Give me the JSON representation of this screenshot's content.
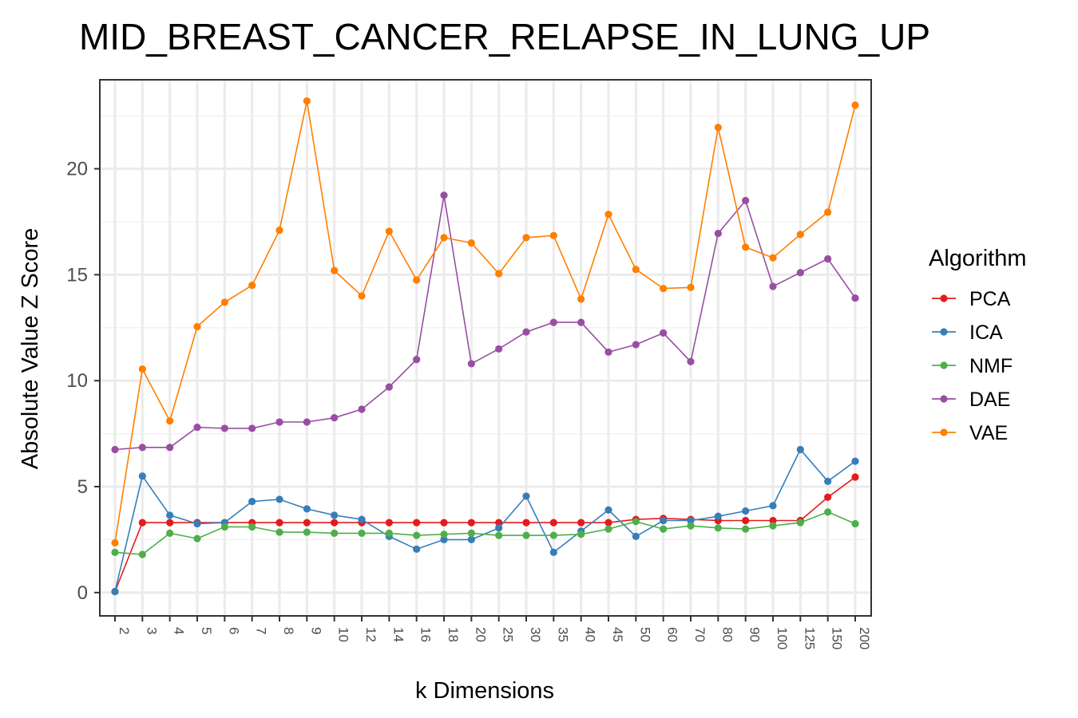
{
  "chart_data": {
    "type": "line",
    "title": "MID_BREAST_CANCER_RELAPSE_IN_LUNG_UP",
    "xlabel": "k Dimensions",
    "ylabel": "Absolute Value Z Score",
    "categories": [
      "2",
      "3",
      "4",
      "5",
      "6",
      "7",
      "8",
      "9",
      "10",
      "12",
      "14",
      "16",
      "18",
      "20",
      "25",
      "30",
      "35",
      "40",
      "45",
      "50",
      "60",
      "70",
      "80",
      "90",
      "100",
      "125",
      "150",
      "200"
    ],
    "y_ticks": [
      "0",
      "5",
      "10",
      "15",
      "20"
    ],
    "ylim": [
      -1.1,
      24.2
    ],
    "grid": true,
    "legend": {
      "title": "Algorithm",
      "position": "right"
    },
    "series": [
      {
        "name": "PCA",
        "color": "#e41a1c",
        "values": [
          0.05,
          3.3,
          3.3,
          3.3,
          3.3,
          3.3,
          3.3,
          3.3,
          3.3,
          3.3,
          3.3,
          3.3,
          3.3,
          3.3,
          3.3,
          3.3,
          3.3,
          3.3,
          3.3,
          3.45,
          3.5,
          3.45,
          3.4,
          3.4,
          3.4,
          3.4,
          4.5,
          5.45
        ]
      },
      {
        "name": "ICA",
        "color": "#377eb8",
        "values": [
          0.05,
          5.5,
          3.65,
          3.25,
          3.3,
          4.3,
          4.4,
          3.95,
          3.65,
          3.45,
          2.65,
          2.05,
          2.5,
          2.5,
          3.05,
          4.55,
          1.9,
          2.9,
          3.9,
          2.65,
          3.4,
          3.4,
          3.6,
          3.85,
          4.1,
          6.75,
          5.25,
          6.2
        ]
      },
      {
        "name": "NMF",
        "color": "#4daf4a",
        "values": [
          1.9,
          1.8,
          2.8,
          2.55,
          3.1,
          3.1,
          2.85,
          2.85,
          2.8,
          2.8,
          2.8,
          2.7,
          2.75,
          2.8,
          2.7,
          2.7,
          2.7,
          2.75,
          3.0,
          3.35,
          3.0,
          3.15,
          3.05,
          3.0,
          3.15,
          3.3,
          3.8,
          3.25
        ]
      },
      {
        "name": "DAE",
        "color": "#984ea3",
        "values": [
          6.75,
          6.85,
          6.85,
          7.8,
          7.75,
          7.75,
          8.05,
          8.05,
          8.25,
          8.65,
          9.7,
          11.0,
          18.75,
          10.8,
          11.5,
          12.3,
          12.75,
          12.75,
          11.35,
          11.7,
          12.25,
          10.9,
          16.95,
          18.5,
          14.45,
          15.1,
          15.75,
          13.9
        ]
      },
      {
        "name": "VAE",
        "color": "#ff7f00",
        "values": [
          2.35,
          10.55,
          8.1,
          12.55,
          13.7,
          14.5,
          17.1,
          23.2,
          15.2,
          14.0,
          17.05,
          14.75,
          16.75,
          16.5,
          15.05,
          16.75,
          16.85,
          13.85,
          17.85,
          15.25,
          14.35,
          14.4,
          21.95,
          16.3,
          15.8,
          16.9,
          17.95,
          23.0
        ]
      }
    ]
  }
}
